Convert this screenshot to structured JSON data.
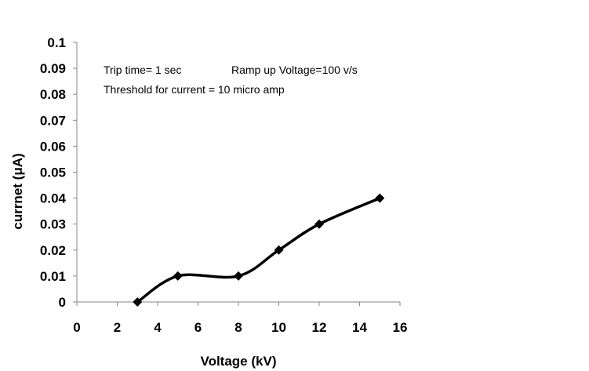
{
  "chart_data": {
    "type": "line",
    "title": "",
    "xlabel": "Voltage (kV)",
    "ylabel": "currnet  (μA)",
    "xlim": [
      0,
      16
    ],
    "ylim": [
      0,
      0.1
    ],
    "x_ticks": [
      "0",
      "2",
      "4",
      "6",
      "8",
      "10",
      "12",
      "14",
      "16"
    ],
    "y_ticks": [
      "0",
      "0.01",
      "0.02",
      "0.03",
      "0.04",
      "0.05",
      "0.06",
      "0.07",
      "0.08",
      "0.09",
      "0.1"
    ],
    "grid": false,
    "smooth": true,
    "marker": "diamond",
    "line_color": "#000000",
    "series": [
      {
        "x": [
          3,
          5,
          8,
          10,
          12,
          15
        ],
        "y": [
          0,
          0.01,
          0.01,
          0.02,
          0.03,
          0.04
        ]
      }
    ],
    "annotations": [
      "Trip time= 1 sec",
      "Ramp up Voltage=100 v/s",
      "Threshold for current = 10 micro amp"
    ]
  }
}
